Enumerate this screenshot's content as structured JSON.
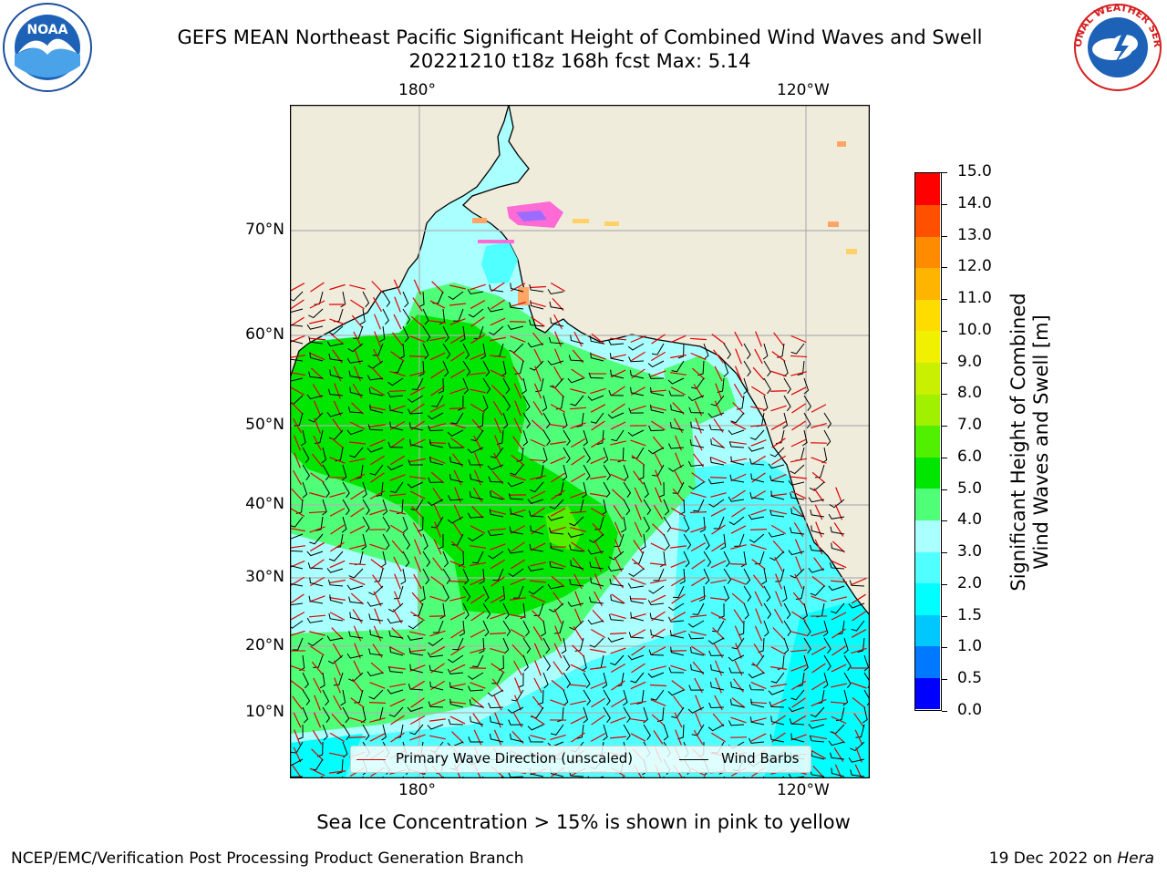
{
  "title": {
    "line1": "GEFS MEAN Northeast Pacific Significant Height of Combined Wind Waves and Swell",
    "line2": "20221210 t18z 168h fcst   Max: 5.14"
  },
  "logos": {
    "left": {
      "name": "NOAA",
      "ring_text": "NATIONAL OCEANIC AND ATMOSPHERIC ADMINISTRATION · U.S. DEPARTMENT OF COMMERCE",
      "icon": "noaa-logo"
    },
    "right": {
      "name": "NATIONAL WEATHER SERVICE",
      "icon": "nws-logo"
    }
  },
  "map": {
    "lon_labels": [
      "180°",
      "120°W"
    ],
    "lat_labels": [
      "70°N",
      "60°N",
      "50°N",
      "40°N",
      "30°N",
      "20°N",
      "10°N"
    ],
    "colors": {
      "land": "#efecdc",
      "grid": "#b0b0b0",
      "coast": "#000000",
      "wave_arrow": "#e00000",
      "wind_barb": "#000000"
    }
  },
  "legend": {
    "wave_direction": "Primary Wave Direction (unscaled)",
    "wind_barbs": "Wind Barbs"
  },
  "colorbar": {
    "label_line1": "Significant Height of Combined",
    "label_line2": "Wind Waves and Swell [m]",
    "ticks": [
      "0.0",
      "0.5",
      "1.0",
      "1.5",
      "2.0",
      "3.0",
      "4.0",
      "5.0",
      "6.0",
      "7.0",
      "8.0",
      "9.0",
      "10.0",
      "11.0",
      "12.0",
      "13.0",
      "14.0",
      "15.0"
    ],
    "colors": [
      "#0000ff",
      "#0078ff",
      "#00c8ff",
      "#00ffff",
      "#50ffff",
      "#aaffff",
      "#50ff78",
      "#00e600",
      "#50f000",
      "#a0f000",
      "#c8f000",
      "#f0f000",
      "#ffdc00",
      "#ffb400",
      "#ff8c00",
      "#ff5000",
      "#ff0000"
    ]
  },
  "note": "Sea Ice Concentration > 15% is shown in pink to yellow",
  "footer": {
    "left": "NCEP/EMC/Verification Post Processing Product Generation Branch",
    "right_prefix": "19 Dec 2022 on ",
    "right_machine": "Hera"
  }
}
